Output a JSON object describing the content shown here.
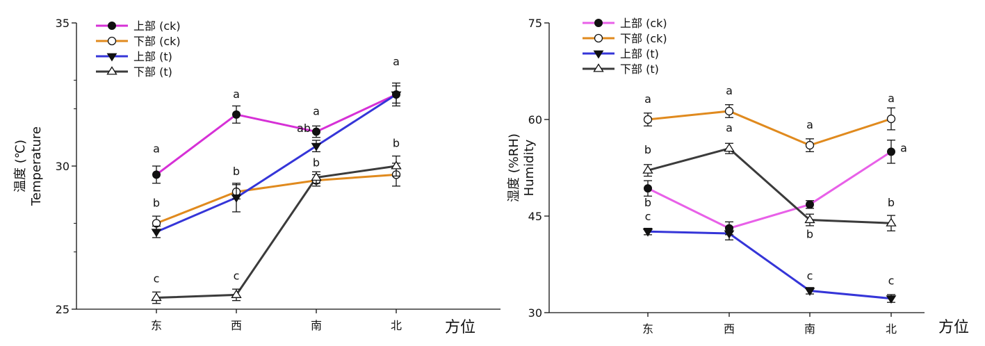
{
  "chart_data": [
    {
      "type": "line",
      "ylabel_cn": "温度 (℃)",
      "ylabel_en": "Temperature",
      "xlabel": "方位",
      "categories": [
        "东",
        "西",
        "南",
        "北"
      ],
      "ylim": [
        25,
        35
      ],
      "yticks": [
        25,
        30,
        35
      ],
      "minor_ticks": [
        27,
        28,
        32,
        33
      ],
      "legend_position": "top-left",
      "series": [
        {
          "name": "上部 (ck)",
          "color": "#d630d6",
          "marker": "filled-circle",
          "values": [
            29.7,
            31.8,
            31.2,
            32.5
          ],
          "errors": [
            0.3,
            0.3,
            0.2,
            0.4
          ],
          "letters": [
            "a",
            "a",
            "a",
            "a"
          ]
        },
        {
          "name": "下部 (ck)",
          "color": "#e08a1e",
          "marker": "open-circle",
          "values": [
            28.0,
            29.1,
            29.5,
            29.7
          ],
          "errors": [
            0.25,
            0.25,
            0.2,
            0.4
          ],
          "letters": [
            "b",
            "b",
            "b",
            "b"
          ]
        },
        {
          "name": "上部 (t)",
          "color": "#3535d8",
          "marker": "filled-triangle-down",
          "values": [
            27.7,
            28.9,
            30.7,
            32.5
          ],
          "errors": [
            0.2,
            0.5,
            0.2,
            0.3
          ],
          "letters": [
            "",
            "",
            "ab",
            ""
          ]
        },
        {
          "name": "下部 (t)",
          "color": "#3b3b3b",
          "marker": "open-triangle-up",
          "values": [
            25.4,
            25.5,
            29.6,
            30.0
          ],
          "errors": [
            0.2,
            0.2,
            0.2,
            0.35
          ],
          "letters": [
            "c",
            "c",
            "",
            ""
          ]
        }
      ]
    },
    {
      "type": "line",
      "ylabel_cn": "湿度 (%RH)",
      "ylabel_en": "Humidity",
      "xlabel": "方位",
      "categories": [
        "东",
        "西",
        "南",
        "北"
      ],
      "ylim": [
        30,
        75
      ],
      "yticks": [
        30,
        45,
        60,
        75
      ],
      "minor_ticks": [],
      "legend_position": "top-left",
      "series": [
        {
          "name": "上部 (ck)",
          "color": "#e860e8",
          "marker": "filled-circle",
          "values": [
            49.3,
            43.1,
            46.8,
            55.0
          ],
          "errors": [
            1.2,
            1.0,
            0.6,
            1.8
          ],
          "letters": [
            "b",
            "",
            "",
            "a"
          ]
        },
        {
          "name": "下部 (ck)",
          "color": "#e08a1e",
          "marker": "open-circle",
          "values": [
            60.0,
            61.3,
            56.0,
            60.1
          ],
          "errors": [
            1.0,
            1.0,
            1.0,
            1.7
          ],
          "letters": [
            "a",
            "a",
            "a",
            "a"
          ]
        },
        {
          "name": "上部 (t)",
          "color": "#3535d8",
          "marker": "filled-triangle-down",
          "values": [
            42.6,
            42.3,
            33.4,
            32.2
          ],
          "errors": [
            0.5,
            1.0,
            0.5,
            0.6
          ],
          "letters": [
            "c",
            "",
            "c",
            "c"
          ]
        },
        {
          "name": "下部 (t)",
          "color": "#3b3b3b",
          "marker": "open-triangle-up",
          "values": [
            52.1,
            55.5,
            44.4,
            43.9
          ],
          "errors": [
            0.9,
            0.8,
            0.9,
            1.2
          ],
          "letters": [
            "b",
            "a",
            "b",
            "b"
          ]
        }
      ]
    }
  ]
}
